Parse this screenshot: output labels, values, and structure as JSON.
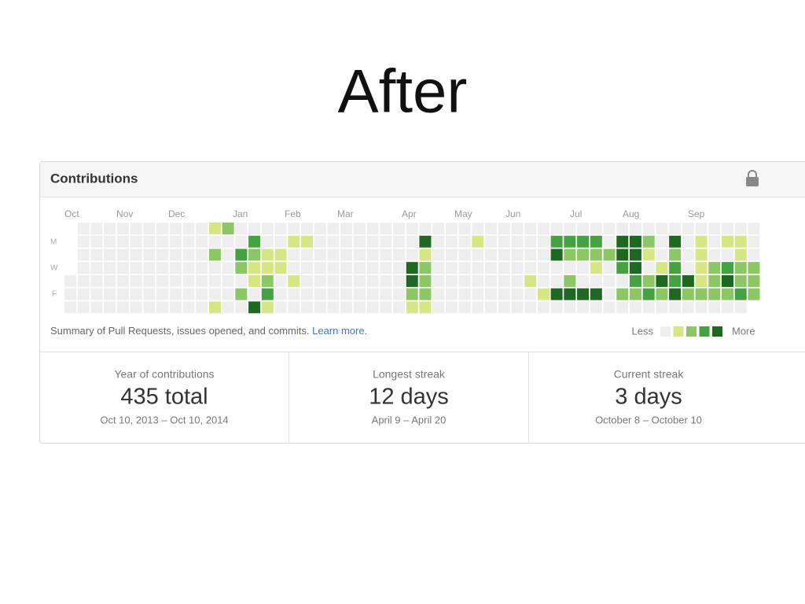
{
  "slide_title": "After",
  "panel": {
    "title": "Contributions",
    "months": [
      "Oct",
      "Nov",
      "Dec",
      "Jan",
      "Feb",
      "Mar",
      "Apr",
      "May",
      "Jun",
      "Jul",
      "Aug",
      "Sep"
    ],
    "weekdays": [
      "M",
      "W",
      "F"
    ],
    "level_colors": [
      "#eeeeee",
      "#d6e685",
      "#8cc665",
      "#44a340",
      "#1e6823"
    ],
    "levels": [
      [
        null,
        0,
        0,
        0,
        0,
        0,
        0,
        0,
        0,
        0,
        0,
        1,
        2,
        0,
        0,
        0,
        0,
        0,
        0,
        0,
        0,
        0,
        0,
        0,
        0,
        0,
        0,
        0,
        0,
        0,
        0,
        0,
        0,
        0,
        0,
        0,
        0,
        0,
        0,
        0,
        0,
        0,
        0,
        0,
        0,
        0,
        0,
        0,
        0,
        0,
        0,
        0,
        0
      ],
      [
        null,
        0,
        0,
        0,
        0,
        0,
        0,
        0,
        0,
        0,
        0,
        0,
        0,
        0,
        3,
        0,
        0,
        1,
        1,
        0,
        0,
        0,
        0,
        0,
        0,
        0,
        0,
        4,
        0,
        0,
        0,
        1,
        0,
        0,
        0,
        0,
        0,
        3,
        3,
        3,
        3,
        0,
        4,
        4,
        2,
        0,
        4,
        0,
        1,
        0,
        1,
        1,
        0
      ],
      [
        null,
        0,
        0,
        0,
        0,
        0,
        0,
        0,
        0,
        0,
        0,
        2,
        0,
        3,
        2,
        1,
        1,
        0,
        0,
        0,
        0,
        0,
        0,
        0,
        0,
        0,
        0,
        1,
        0,
        0,
        0,
        0,
        0,
        0,
        0,
        0,
        0,
        4,
        2,
        2,
        2,
        2,
        4,
        4,
        1,
        0,
        2,
        0,
        1,
        0,
        0,
        1,
        0
      ],
      [
        null,
        0,
        0,
        0,
        0,
        0,
        0,
        0,
        0,
        0,
        0,
        0,
        0,
        2,
        1,
        1,
        1,
        0,
        0,
        0,
        0,
        0,
        0,
        0,
        0,
        0,
        4,
        2,
        0,
        0,
        0,
        0,
        0,
        0,
        0,
        0,
        0,
        0,
        0,
        0,
        1,
        0,
        3,
        4,
        0,
        1,
        3,
        0,
        1,
        2,
        3,
        2,
        2
      ],
      [
        0,
        0,
        0,
        0,
        0,
        0,
        0,
        0,
        0,
        0,
        0,
        0,
        0,
        0,
        1,
        2,
        0,
        1,
        0,
        0,
        0,
        0,
        0,
        0,
        0,
        0,
        4,
        2,
        0,
        0,
        0,
        0,
        0,
        0,
        0,
        1,
        0,
        0,
        2,
        0,
        0,
        0,
        0,
        3,
        2,
        4,
        3,
        4,
        1,
        2,
        4,
        2,
        2
      ],
      [
        0,
        0,
        0,
        0,
        0,
        0,
        0,
        0,
        0,
        0,
        0,
        0,
        0,
        2,
        0,
        3,
        0,
        0,
        0,
        0,
        0,
        0,
        0,
        0,
        0,
        0,
        2,
        2,
        0,
        0,
        0,
        0,
        0,
        0,
        0,
        0,
        1,
        4,
        4,
        4,
        4,
        0,
        2,
        2,
        3,
        2,
        4,
        2,
        2,
        2,
        2,
        3,
        2
      ],
      [
        0,
        0,
        0,
        0,
        0,
        0,
        0,
        0,
        0,
        0,
        0,
        1,
        0,
        0,
        4,
        1,
        0,
        0,
        0,
        0,
        0,
        0,
        0,
        0,
        0,
        0,
        1,
        1,
        0,
        0,
        0,
        0,
        0,
        0,
        0,
        0,
        0,
        0,
        0,
        0,
        0,
        0,
        0,
        0,
        0,
        0,
        0,
        0,
        0,
        0,
        0,
        0,
        null
      ]
    ],
    "summary": "Summary of Pull Requests, issues opened, and commits.",
    "learn_more": "Learn more",
    "summary_end": ".",
    "legend_less": "Less",
    "legend_more": "More",
    "stats": [
      {
        "label": "Year of contributions",
        "value": "435 total",
        "range": "Oct 10, 2013 – Oct 10, 2014"
      },
      {
        "label": "Longest streak",
        "value": "12 days",
        "range": "April 9 – April 20"
      },
      {
        "label": "Current streak",
        "value": "3 days",
        "range": "October 8 – October 10"
      }
    ]
  }
}
